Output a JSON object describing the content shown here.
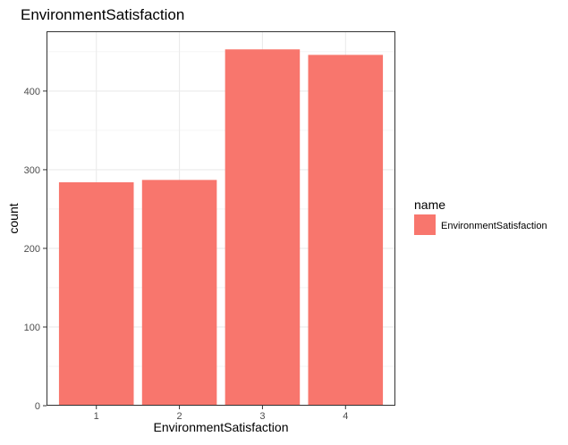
{
  "chart_data": {
    "type": "bar",
    "title": "EnvironmentSatisfaction",
    "xlabel": "EnvironmentSatisfaction",
    "ylabel": "count",
    "categories": [
      "1",
      "2",
      "3",
      "4"
    ],
    "series": [
      {
        "name": "EnvironmentSatisfaction",
        "values": [
          284,
          287,
          453,
          446
        ],
        "color": "#F8766D"
      }
    ],
    "yticks": [
      0,
      100,
      200,
      300,
      400
    ],
    "ylim": [
      0,
      476
    ],
    "grid": true,
    "legend": {
      "title": "name",
      "position": "right"
    }
  }
}
